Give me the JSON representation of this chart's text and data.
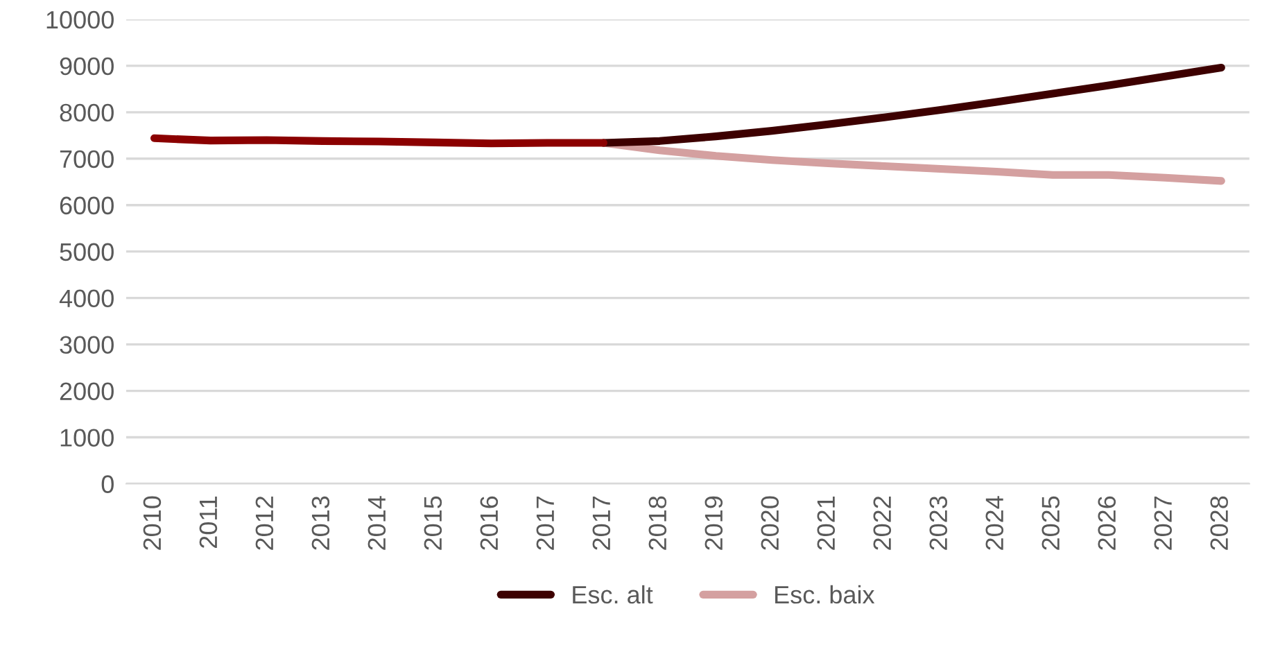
{
  "chart_data": {
    "type": "line",
    "categories": [
      "2010",
      "2011",
      "2012",
      "2013",
      "2014",
      "2015",
      "2016",
      "2017",
      "2017",
      "2018",
      "2019",
      "2020",
      "2021",
      "2022",
      "2023",
      "2024",
      "2025",
      "2026",
      "2027",
      "2028"
    ],
    "series": [
      {
        "color": "#8b0000",
        "values": [
          7440,
          7390,
          7400,
          7380,
          7370,
          7350,
          7330,
          7340,
          7340,
          null,
          null,
          null,
          null,
          null,
          null,
          null,
          null,
          null,
          null,
          null
        ]
      },
      {
        "name": "Esc. alt",
        "color": "#3d0000",
        "values": [
          null,
          null,
          null,
          null,
          null,
          null,
          null,
          null,
          7340,
          7380,
          7480,
          7600,
          7740,
          7890,
          8050,
          8220,
          8400,
          8580,
          8770,
          8960
        ]
      },
      {
        "name": "Esc. baix",
        "color": "#d4a0a0",
        "values": [
          null,
          null,
          null,
          null,
          null,
          null,
          null,
          null,
          7340,
          7180,
          7060,
          6970,
          6900,
          6840,
          6780,
          6720,
          6650,
          6650,
          6590,
          6520
        ]
      }
    ],
    "ylim": [
      0,
      10000
    ],
    "yticks": [
      0,
      1000,
      2000,
      3000,
      4000,
      5000,
      6000,
      7000,
      8000,
      9000,
      10000
    ],
    "grid": "y",
    "legend": "bottom",
    "marker": "none",
    "line_style": "solid"
  }
}
